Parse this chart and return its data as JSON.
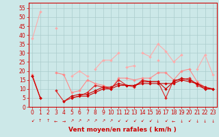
{
  "x": [
    0,
    1,
    2,
    3,
    4,
    5,
    6,
    7,
    8,
    9,
    10,
    11,
    12,
    13,
    14,
    15,
    16,
    17,
    18,
    19,
    20,
    21,
    22,
    23
  ],
  "series": [
    {
      "color": "#ffaaaa",
      "lw": 0.8,
      "y": [
        38,
        53,
        null,
        44,
        null,
        null,
        null,
        null,
        21,
        26,
        26,
        30,
        null,
        null,
        30,
        28,
        35,
        31,
        25,
        29,
        null,
        21,
        29,
        18
      ]
    },
    {
      "color": "#ffaaaa",
      "lw": 0.8,
      "y": [
        null,
        null,
        null,
        null,
        null,
        17,
        20,
        17,
        null,
        null,
        null,
        null,
        22,
        23,
        null,
        null,
        26,
        null,
        null,
        null,
        null,
        null,
        null,
        null
      ]
    },
    {
      "color": "#ff8888",
      "lw": 0.8,
      "y": [
        18,
        5,
        null,
        19,
        18,
        8,
        9,
        15,
        13,
        12,
        10,
        16,
        16,
        15,
        16,
        16,
        19,
        19,
        15,
        20,
        21,
        14,
        11,
        10
      ]
    },
    {
      "color": "#dd2222",
      "lw": 0.8,
      "y": [
        17,
        5,
        null,
        9,
        3,
        5,
        6,
        8,
        12,
        11,
        10,
        15,
        12,
        11,
        15,
        14,
        14,
        5,
        15,
        15,
        16,
        12,
        10,
        10
      ]
    },
    {
      "color": "#cc0000",
      "lw": 0.8,
      "y": [
        null,
        null,
        null,
        null,
        null,
        5,
        6,
        6,
        8,
        10,
        10,
        12,
        12,
        12,
        13,
        13,
        13,
        13,
        13,
        15,
        14,
        13,
        11,
        10
      ]
    },
    {
      "color": "#cc0000",
      "lw": 0.8,
      "y": [
        17,
        5,
        null,
        null,
        3,
        6,
        7,
        7,
        9,
        11,
        11,
        13,
        12,
        12,
        14,
        14,
        14,
        10,
        14,
        16,
        15,
        13,
        10,
        10
      ]
    }
  ],
  "arrow_chars": [
    "↙",
    "↑",
    "↑",
    "←",
    "→",
    "↗",
    "↗",
    "↗",
    "↗",
    "↗",
    "↗",
    "↙",
    "↙",
    "↙",
    "↙",
    "↙",
    "↓",
    "↙",
    "←",
    "↓",
    "↙",
    "↓",
    "↓",
    "↓"
  ],
  "xlabel": "Vent moyen/en rafales ( km/h )",
  "ylim": [
    0,
    58
  ],
  "xlim": [
    -0.5,
    23.5
  ],
  "yticks": [
    0,
    5,
    10,
    15,
    20,
    25,
    30,
    35,
    40,
    45,
    50,
    55
  ],
  "xticks": [
    0,
    1,
    2,
    3,
    4,
    5,
    6,
    7,
    8,
    9,
    10,
    11,
    12,
    13,
    14,
    15,
    16,
    17,
    18,
    19,
    20,
    21,
    22,
    23
  ],
  "bg_color": "#cce8e8",
  "grid_color": "#aacccc",
  "axis_color": "#cc0000",
  "xlabel_color": "#cc0000",
  "xlabel_fontsize": 6.5,
  "tick_fontsize": 5.5
}
